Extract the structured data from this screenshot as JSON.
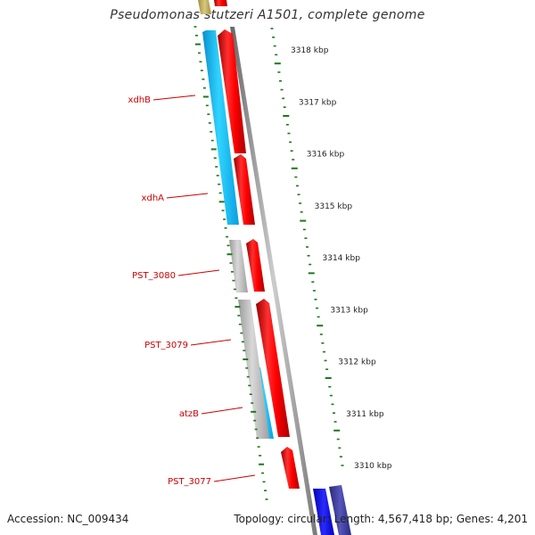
{
  "title": "Pseudomonas stutzeri A1501, complete genome",
  "footer": {
    "accession": "Accession: NC_009434",
    "topology": "Topology: circular; Length: 4,567,418 bp; Genes: 4,201"
  },
  "colors": {
    "forward_cds": "#ff0000",
    "reverse_cds": "#1ec8ff",
    "gray_feature": "#bbbbbb",
    "blue_feature": "#0000ff",
    "navy_feature": "#3d3d99",
    "olive_feature": "#c0b060",
    "tick": "#1a7a1a",
    "gene_label": "#cc0000",
    "backbone": "#888888"
  },
  "scale_labels": [
    "3318 kbp",
    "3317 kbp",
    "3316 kbp",
    "3315 kbp",
    "3314 kbp",
    "3313 kbp",
    "3312 kbp",
    "3311 kbp",
    "3310 kbp"
  ],
  "gene_labels": [
    "xdhB",
    "xdhA",
    "PST_3080",
    "PST_3079",
    "atzB",
    "PST_3077"
  ]
}
